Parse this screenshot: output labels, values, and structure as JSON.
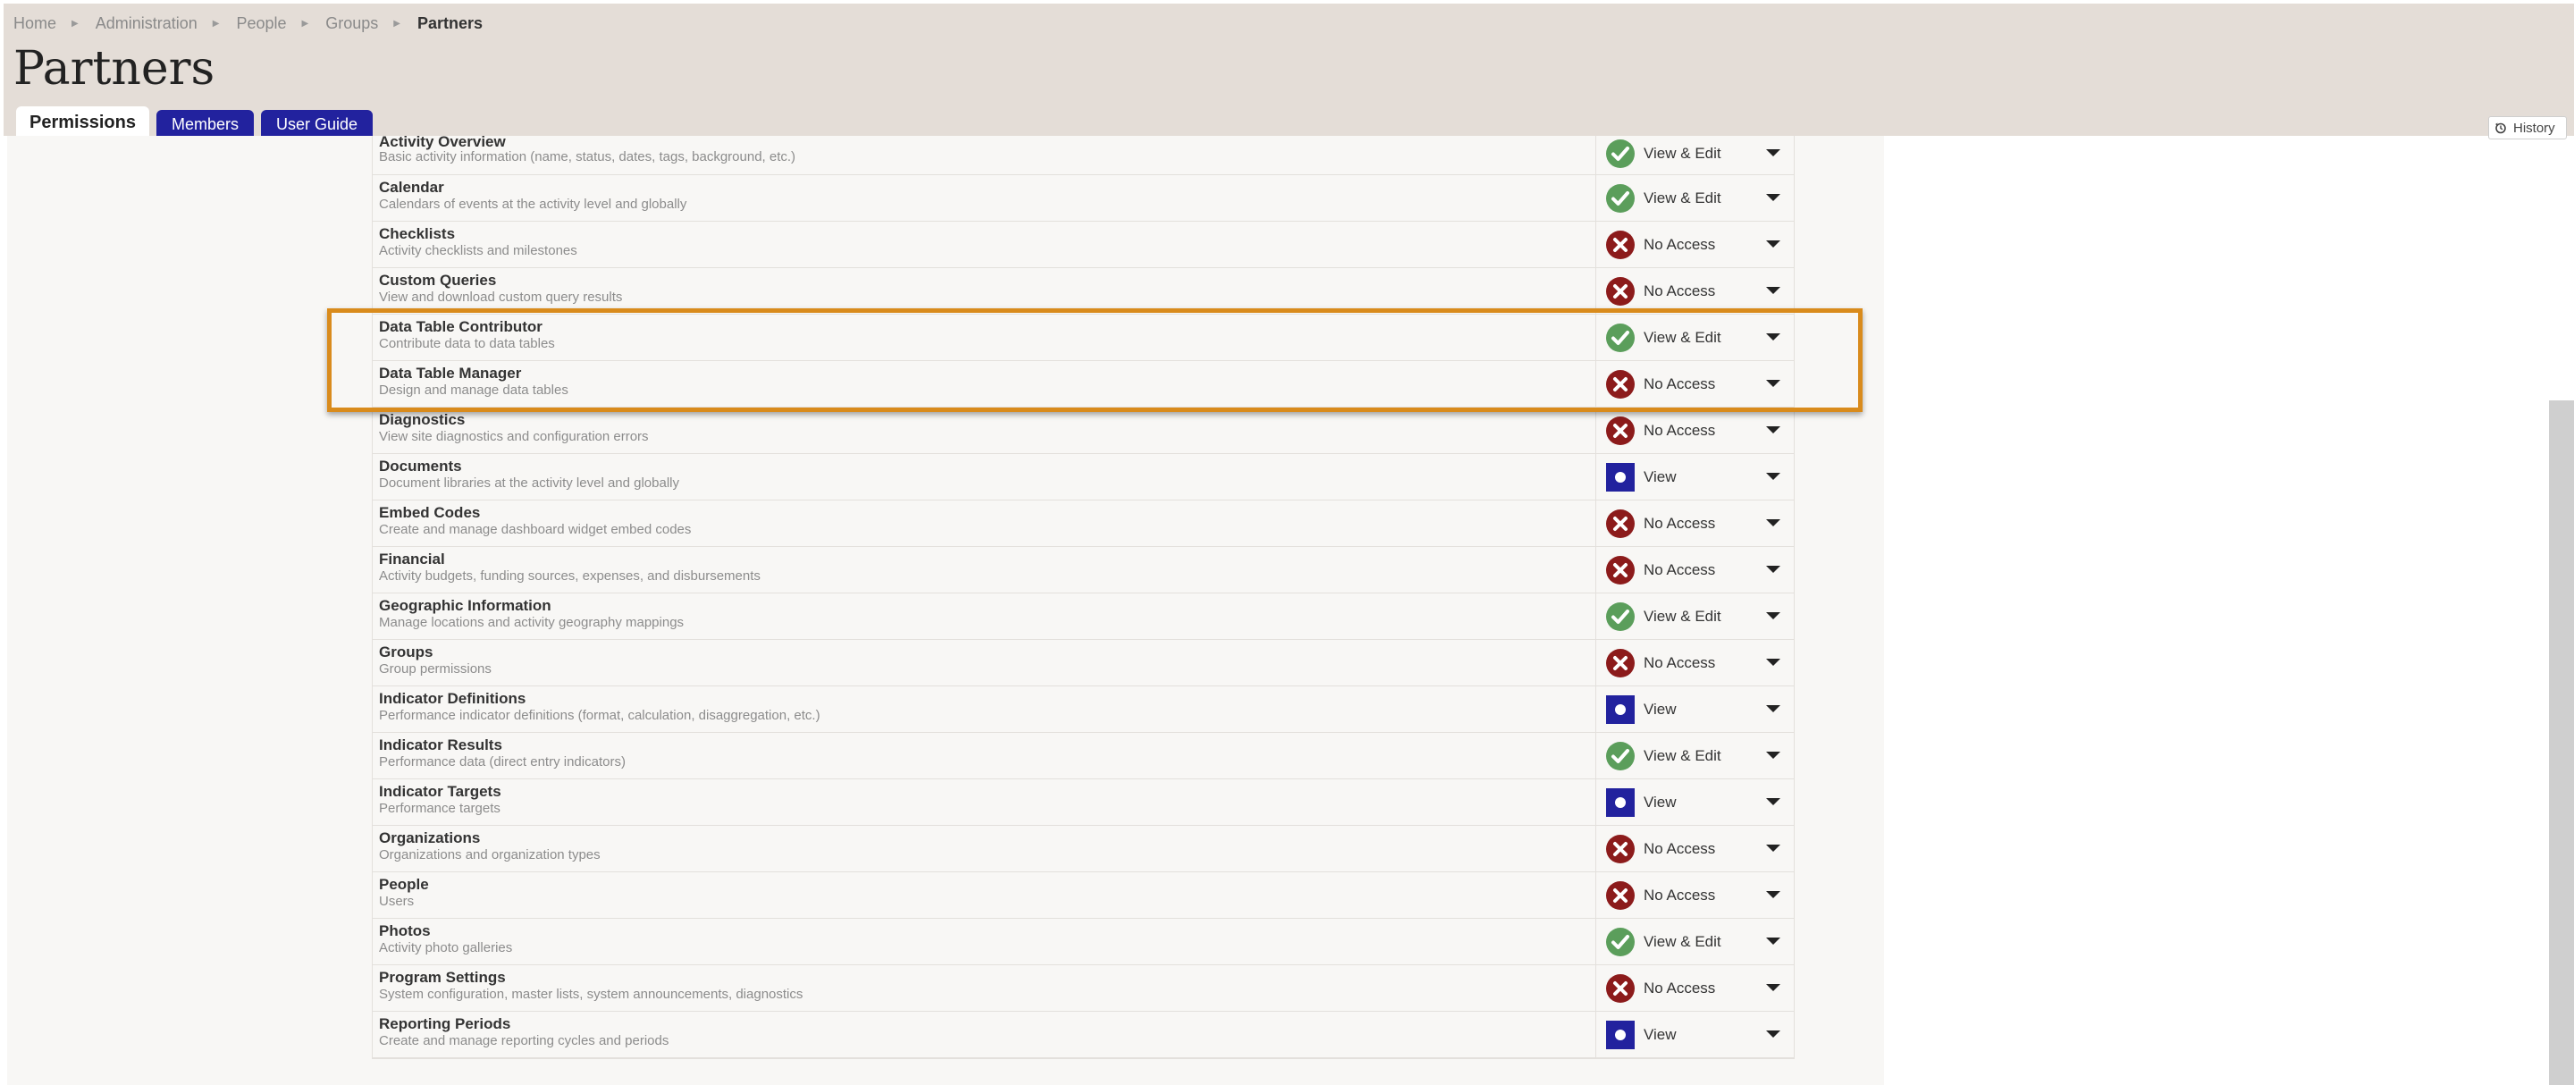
{
  "breadcrumb": {
    "items": [
      "Home",
      "Administration",
      "People",
      "Groups"
    ],
    "current": "Partners"
  },
  "page": {
    "title": "Partners"
  },
  "tabs": [
    {
      "label": "Permissions",
      "active": true
    },
    {
      "label": "Members",
      "active": false
    },
    {
      "label": "User Guide",
      "active": false
    }
  ],
  "history": {
    "label": "History",
    "icon": "history-icon"
  },
  "colors": {
    "view_edit": "#5b9e5b",
    "no_access": "#8c1b1b",
    "view": "#22229e",
    "highlight": "#d98b1c"
  },
  "permissions": [
    {
      "name": "Activity Overview",
      "desc": "Basic activity information (name, status, dates, tags, background, etc.)",
      "level": "View & Edit",
      "icon": "check-icon"
    },
    {
      "name": "Calendar",
      "desc": "Calendars of events at the activity level and globally",
      "level": "View & Edit",
      "icon": "check-icon"
    },
    {
      "name": "Checklists",
      "desc": "Activity checklists and milestones",
      "level": "No Access",
      "icon": "x-icon"
    },
    {
      "name": "Custom Queries",
      "desc": "View and download custom query results",
      "level": "No Access",
      "icon": "x-icon"
    },
    {
      "name": "Data Table Contributor",
      "desc": "Contribute data to data tables",
      "level": "View & Edit",
      "icon": "check-icon"
    },
    {
      "name": "Data Table Manager",
      "desc": "Design and manage data tables",
      "level": "No Access",
      "icon": "x-icon"
    },
    {
      "name": "Diagnostics",
      "desc": "View site diagnostics and configuration errors",
      "level": "No Access",
      "icon": "x-icon"
    },
    {
      "name": "Documents",
      "desc": "Document libraries at the activity level and globally",
      "level": "View",
      "icon": "dot-icon"
    },
    {
      "name": "Embed Codes",
      "desc": "Create and manage dashboard widget embed codes",
      "level": "No Access",
      "icon": "x-icon"
    },
    {
      "name": "Financial",
      "desc": "Activity budgets, funding sources, expenses, and disbursements",
      "level": "No Access",
      "icon": "x-icon"
    },
    {
      "name": "Geographic Information",
      "desc": "Manage locations and activity geography mappings",
      "level": "View & Edit",
      "icon": "check-icon"
    },
    {
      "name": "Groups",
      "desc": "Group permissions",
      "level": "No Access",
      "icon": "x-icon"
    },
    {
      "name": "Indicator Definitions",
      "desc": "Performance indicator definitions (format, calculation, disaggregation, etc.)",
      "level": "View",
      "icon": "dot-icon"
    },
    {
      "name": "Indicator Results",
      "desc": "Performance data (direct entry indicators)",
      "level": "View & Edit",
      "icon": "check-icon"
    },
    {
      "name": "Indicator Targets",
      "desc": "Performance targets",
      "level": "View",
      "icon": "dot-icon"
    },
    {
      "name": "Organizations",
      "desc": "Organizations and organization types",
      "level": "No Access",
      "icon": "x-icon"
    },
    {
      "name": "People",
      "desc": "Users",
      "level": "No Access",
      "icon": "x-icon"
    },
    {
      "name": "Photos",
      "desc": "Activity photo galleries",
      "level": "View & Edit",
      "icon": "check-icon"
    },
    {
      "name": "Program Settings",
      "desc": "System configuration, master lists, system announcements, diagnostics",
      "level": "No Access",
      "icon": "x-icon"
    },
    {
      "name": "Reporting Periods",
      "desc": "Create and manage reporting cycles and periods",
      "level": "View",
      "icon": "dot-icon"
    }
  ]
}
